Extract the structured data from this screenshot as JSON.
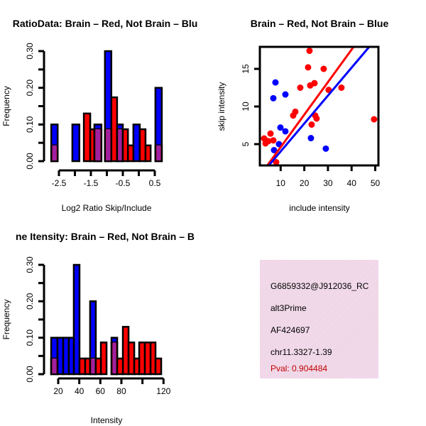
{
  "colors": {
    "red": "#ff0000",
    "blue": "#0000ff",
    "overlap": "#a020a0",
    "pval": "#c00000"
  },
  "chart_data": [
    {
      "type": "histogram",
      "title": "RatioData: Brain – Red, Not Brain – Blu",
      "xlabel": "Log2 Ratio Skip/Include",
      "ylabel": "Frequency",
      "xticks": [
        "-2.5",
        "-1.5",
        "-0.5",
        "0.5"
      ],
      "xtick_values": [
        -2.5,
        -1.5,
        -0.5,
        0.5
      ],
      "yticks": [
        "0.00",
        "0.10",
        "0.20",
        "0.30"
      ],
      "ytick_values": [
        0,
        0.1,
        0.2,
        0.3
      ],
      "ylim": [
        0,
        0.3
      ],
      "series": [
        {
          "name": "Not Brain",
          "color": "blue",
          "bars": [
            [
              -2.74,
              -2.54,
              0.1
            ],
            [
              -2.08,
              -1.86,
              0.1
            ],
            [
              -1.39,
              -1.17,
              0.1
            ],
            [
              -1.06,
              -0.86,
              0.3
            ],
            [
              -0.68,
              -0.5,
              0.1
            ],
            [
              -0.17,
              0.03,
              0.1
            ],
            [
              0.52,
              0.72,
              0.2
            ]
          ]
        },
        {
          "name": "Brain",
          "color": "red",
          "bars": [
            [
              -2.74,
              -2.54,
              0.043
            ],
            [
              -1.72,
              -1.52,
              0.13
            ],
            [
              -1.52,
              -1.39,
              0.087
            ],
            [
              -1.39,
              -1.17,
              0.087
            ],
            [
              -1.06,
              -0.86,
              0.087
            ],
            [
              -0.86,
              -0.68,
              0.174
            ],
            [
              -0.68,
              -0.5,
              0.087
            ],
            [
              -0.5,
              -0.34,
              0.087
            ],
            [
              -0.34,
              -0.17,
              0.043
            ],
            [
              0.03,
              0.21,
              0.087
            ],
            [
              0.21,
              0.37,
              0.043
            ],
            [
              0.52,
              0.72,
              0.043
            ]
          ]
        }
      ]
    },
    {
      "type": "scatter",
      "title": "Brain – Red, Not Brain – Blue",
      "xlabel": "include intensity",
      "ylabel": "skip intensity",
      "xticks": [
        "10",
        "20",
        "30",
        "40",
        "50"
      ],
      "xtick_values": [
        10,
        20,
        30,
        40,
        50
      ],
      "yticks": [
        "5",
        "10",
        "15"
      ],
      "ytick_values": [
        5,
        10,
        15
      ],
      "xlim": [
        1.2,
        51.3
      ],
      "ylim": [
        2.1,
        17.9
      ],
      "series": [
        {
          "name": "Brain",
          "color": "red",
          "points": [
            [
              3.0,
              5.75
            ],
            [
              3.6,
              5.1
            ],
            [
              4.8,
              5.4
            ],
            [
              5.7,
              6.4
            ],
            [
              6.9,
              5.5
            ],
            [
              8.1,
              2.6
            ],
            [
              15.3,
              8.8
            ],
            [
              16.2,
              9.3
            ],
            [
              18.3,
              12.5
            ],
            [
              22.2,
              17.4
            ],
            [
              21.6,
              15.2
            ],
            [
              22.5,
              12.8
            ],
            [
              24.3,
              13.1
            ],
            [
              24.6,
              8.8
            ],
            [
              25.2,
              8.4
            ],
            [
              23.1,
              7.6
            ],
            [
              28.2,
              15.0
            ],
            [
              30.3,
              12.2
            ],
            [
              35.7,
              12.5
            ],
            [
              49.5,
              8.3
            ]
          ],
          "fit": {
            "intercept": 0.28,
            "slope": 0.432
          }
        },
        {
          "name": "Not Brain",
          "color": "blue",
          "points": [
            [
              7.8,
              13.2
            ],
            [
              6.9,
              11.1
            ],
            [
              12.0,
              11.6
            ],
            [
              9.9,
              7.2
            ],
            [
              12.0,
              6.7
            ],
            [
              9.3,
              5.0
            ],
            [
              7.2,
              4.2
            ],
            [
              22.8,
              5.8
            ],
            [
              29.1,
              4.4
            ]
          ],
          "fit": {
            "intercept": 0.32,
            "slope": 0.371
          }
        }
      ]
    },
    {
      "type": "histogram",
      "title": "ne Itensity: Brain – Red, Not Brain – B",
      "xlabel": "Intensity",
      "ylabel": "Frequency",
      "xticks": [
        "20",
        "40",
        "60",
        "80",
        "120"
      ],
      "xtick_values": [
        20,
        40,
        60,
        80,
        120
      ],
      "xaxis_range": [
        20,
        120
      ],
      "yticks": [
        "0.00",
        "0.10",
        "0.20",
        "0.30"
      ],
      "ytick_values": [
        0,
        0.1,
        0.2,
        0.3
      ],
      "ylim": [
        0,
        0.3
      ],
      "series": [
        {
          "name": "Not Brain",
          "color": "blue",
          "bars": [
            [
              13.3,
              19.3,
              0.1
            ],
            [
              19.3,
              24.7,
              0.1
            ],
            [
              24.7,
              30.1,
              0.1
            ],
            [
              30.1,
              34.8,
              0.1
            ],
            [
              34.8,
              40.2,
              0.3
            ],
            [
              50.3,
              55.7,
              0.2
            ],
            [
              70.6,
              76.0,
              0.1
            ]
          ]
        },
        {
          "name": "Brain",
          "color": "red",
          "bars": [
            [
              13.3,
              19.3,
              0.043
            ],
            [
              40.2,
              45.6,
              0.043
            ],
            [
              45.6,
              50.3,
              0.043
            ],
            [
              50.3,
              55.7,
              0.043
            ],
            [
              55.7,
              60.5,
              0.043
            ],
            [
              60.5,
              65.9,
              0.087
            ],
            [
              70.6,
              76.0,
              0.087
            ],
            [
              76.0,
              81.4,
              0.043
            ],
            [
              81.4,
              86.8,
              0.13
            ],
            [
              86.8,
              92.2,
              0.087
            ],
            [
              92.2,
              96.9,
              0.043
            ],
            [
              96.9,
              102.3,
              0.087
            ],
            [
              102.3,
              107.7,
              0.087
            ],
            [
              107.7,
              112.4,
              0.087
            ],
            [
              112.4,
              117.8,
              0.043
            ]
          ]
        }
      ]
    }
  ],
  "info": {
    "id": "G6859332@J912036_RC",
    "type": "alt3Prime",
    "accession": "AF424697",
    "location": "chr11.3327-1.39",
    "pval": "Pval: 0.904484"
  }
}
